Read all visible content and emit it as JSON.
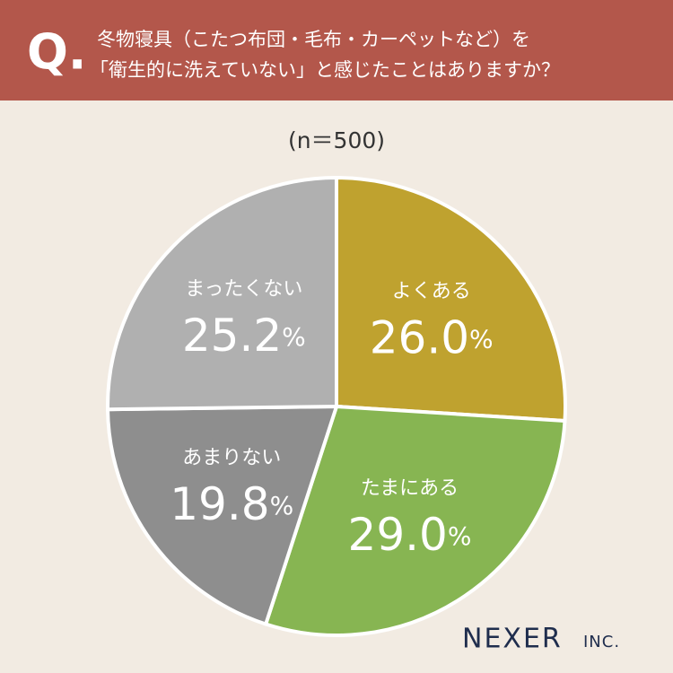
{
  "badge": "Q.",
  "logo": {
    "name": "NEXER",
    "suffix": "INC."
  },
  "chart_data": {
    "type": "pie",
    "title": [
      "冬物寝具（こたつ布団・毛布・カーペットなど）を",
      "「衛生的に洗えていない」と感じたことはありますか？"
    ],
    "subtitle": "(n＝500)",
    "categories": [
      "よくある",
      "たまにある",
      "あまりない",
      "まったくない"
    ],
    "values": [
      26.0,
      29.0,
      19.8,
      25.2
    ],
    "value_labels": [
      "26.0%",
      "29.0%",
      "19.8%",
      "25.2%"
    ],
    "colors": [
      "#bfa22f",
      "#87b552",
      "#8e8e8e",
      "#b0b0b0"
    ]
  }
}
